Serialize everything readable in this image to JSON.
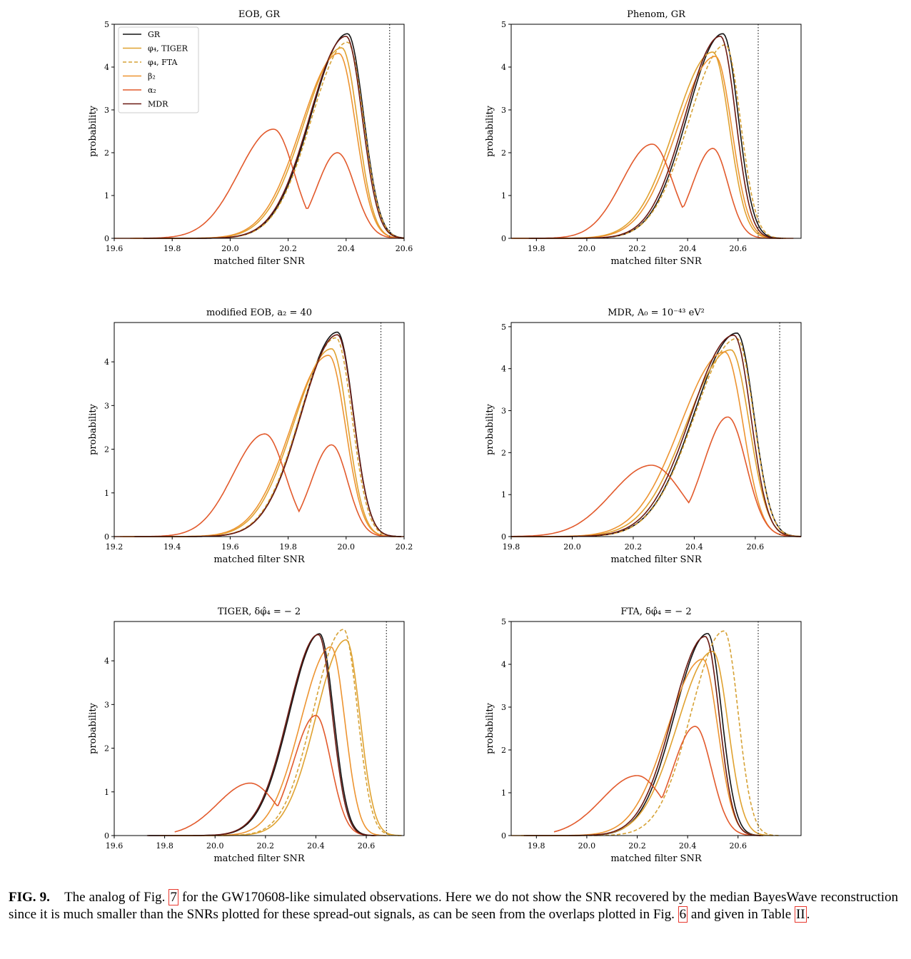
{
  "figure": {
    "caption_label": "FIG. 9.",
    "caption_parts": [
      "The analog of Fig. ",
      "7",
      " for the GW170608-like simulated observations. Here we do not show the SNR recovered by the median BayesWave reconstruction since it is much smaller than the SNRs plotted for these spread-out signals, as can be seen from the overlaps plotted in Fig. ",
      "6",
      " and given in Table ",
      "II",
      "."
    ]
  },
  "legend": [
    {
      "label": "GR",
      "color": "#141414",
      "dash": false
    },
    {
      "label": "φ₄, TIGER",
      "color": "#e0a230",
      "dash": false
    },
    {
      "label": "φ₄, FTA",
      "color": "#d6a236",
      "dash": true
    },
    {
      "label": "β₂",
      "color": "#ed9431",
      "dash": false
    },
    {
      "label": "α₂",
      "color": "#e25a2c",
      "dash": false
    },
    {
      "label": "MDR",
      "color": "#6b1a12",
      "dash": false
    }
  ],
  "chart_data": [
    {
      "type": "line",
      "title": "EOB, GR",
      "xlabel": "matched filter SNR",
      "ylabel": "probability",
      "xlim": [
        19.6,
        20.6
      ],
      "ylim": [
        0,
        5
      ],
      "xticks": [
        "19.6",
        "19.8",
        "20.0",
        "20.2",
        "20.4",
        "20.6"
      ],
      "yticks": [
        "0",
        "1",
        "2",
        "3",
        "4",
        "5"
      ],
      "vline": 20.55,
      "series": [
        {
          "name": "GR",
          "peak": 20.405,
          "height": 4.78,
          "sig_l": 0.125,
          "sig_r": 0.055
        },
        {
          "name": "φ₄, TIGER",
          "peak": 20.385,
          "height": 4.45,
          "sig_l": 0.13,
          "sig_r": 0.055
        },
        {
          "name": "φ₄, FTA",
          "peak": 20.405,
          "height": 4.58,
          "sig_l": 0.125,
          "sig_r": 0.055
        },
        {
          "name": "β₂",
          "peak": 20.375,
          "height": 4.32,
          "sig_l": 0.13,
          "sig_r": 0.058
        },
        {
          "name": "α₂",
          "peak": 20.15,
          "height": 2.55,
          "sig_l": 0.12,
          "sig_r": 0.07,
          "peak2": 20.37,
          "height2": 2.0,
          "sig2_l": 0.07,
          "sig2_r": 0.06
        },
        {
          "name": "MDR",
          "peak": 20.4,
          "height": 4.72,
          "sig_l": 0.125,
          "sig_r": 0.055
        }
      ]
    },
    {
      "type": "line",
      "title": "Phenom, GR",
      "xlabel": "matched filter SNR",
      "ylabel": "probability",
      "xlim": [
        19.7,
        20.85
      ],
      "ylim": [
        0,
        5
      ],
      "xticks": [
        "19.8",
        "20.0",
        "20.2",
        "20.4",
        "20.6"
      ],
      "yticks": [
        "0",
        "1",
        "2",
        "3",
        "4",
        "5"
      ],
      "vline": 20.68,
      "series": [
        {
          "name": "GR",
          "peak": 20.54,
          "height": 4.78,
          "sig_l": 0.14,
          "sig_r": 0.06
        },
        {
          "name": "φ₄, TIGER",
          "peak": 20.5,
          "height": 4.35,
          "sig_l": 0.15,
          "sig_r": 0.065
        },
        {
          "name": "φ₄, FTA",
          "peak": 20.55,
          "height": 4.52,
          "sig_l": 0.145,
          "sig_r": 0.06
        },
        {
          "name": "β₂",
          "peak": 20.51,
          "height": 4.25,
          "sig_l": 0.15,
          "sig_r": 0.065
        },
        {
          "name": "α₂",
          "peak": 20.26,
          "height": 2.2,
          "sig_l": 0.12,
          "sig_r": 0.08,
          "peak2": 20.5,
          "height2": 2.1,
          "sig2_l": 0.08,
          "sig2_r": 0.06
        },
        {
          "name": "MDR",
          "peak": 20.53,
          "height": 4.72,
          "sig_l": 0.14,
          "sig_r": 0.06
        }
      ]
    },
    {
      "type": "line",
      "title": "modified EOB, a₂ = 40",
      "xlabel": "matched filter SNR",
      "ylabel": "probability",
      "xlim": [
        19.2,
        20.2
      ],
      "ylim": [
        0,
        4.9
      ],
      "xticks": [
        "19.2",
        "19.4",
        "19.6",
        "19.8",
        "20.0",
        "20.2"
      ],
      "yticks": [
        "0",
        "1",
        "2",
        "3",
        "4"
      ],
      "vline": 20.12,
      "series": [
        {
          "name": "GR",
          "peak": 19.97,
          "height": 4.68,
          "sig_l": 0.125,
          "sig_r": 0.055
        },
        {
          "name": "φ₄, TIGER",
          "peak": 19.95,
          "height": 4.3,
          "sig_l": 0.13,
          "sig_r": 0.055
        },
        {
          "name": "φ₄, FTA",
          "peak": 19.965,
          "height": 4.55,
          "sig_l": 0.125,
          "sig_r": 0.055
        },
        {
          "name": "β₂",
          "peak": 19.94,
          "height": 4.15,
          "sig_l": 0.13,
          "sig_r": 0.058
        },
        {
          "name": "α₂",
          "peak": 19.72,
          "height": 2.35,
          "sig_l": 0.11,
          "sig_r": 0.07,
          "peak2": 19.95,
          "height2": 2.1,
          "sig2_l": 0.07,
          "sig2_r": 0.055
        },
        {
          "name": "MDR",
          "peak": 19.97,
          "height": 4.62,
          "sig_l": 0.125,
          "sig_r": 0.055
        }
      ]
    },
    {
      "type": "line",
      "title": "MDR, A₀ = 10⁻⁴³ eV²",
      "xlabel": "matched filter SNR",
      "ylabel": "probability",
      "xlim": [
        19.8,
        20.75
      ],
      "ylim": [
        0,
        5.1
      ],
      "xticks": [
        "19.8",
        "20.0",
        "20.2",
        "20.4",
        "20.6"
      ],
      "yticks": [
        "0",
        "1",
        "2",
        "3",
        "4",
        "5"
      ],
      "vline": 20.68,
      "series": [
        {
          "name": "GR",
          "peak": 20.54,
          "height": 4.85,
          "sig_l": 0.14,
          "sig_r": 0.055
        },
        {
          "name": "φ₄, TIGER",
          "peak": 20.52,
          "height": 4.45,
          "sig_l": 0.145,
          "sig_r": 0.06
        },
        {
          "name": "φ₄, FTA",
          "peak": 20.54,
          "height": 4.72,
          "sig_l": 0.14,
          "sig_r": 0.055
        },
        {
          "name": "β₂",
          "peak": 20.5,
          "height": 4.4,
          "sig_l": 0.145,
          "sig_r": 0.06
        },
        {
          "name": "α₂",
          "peak": 20.26,
          "height": 1.7,
          "sig_l": 0.13,
          "sig_r": 0.1,
          "peak2": 20.51,
          "height2": 2.85,
          "sig2_l": 0.08,
          "sig2_r": 0.06
        },
        {
          "name": "MDR",
          "peak": 20.53,
          "height": 4.8,
          "sig_l": 0.14,
          "sig_r": 0.055
        }
      ]
    },
    {
      "type": "line",
      "title": "TIGER, δφ̂₄ = − 2",
      "xlabel": "matched filter SNR",
      "ylabel": "probability",
      "xlim": [
        19.6,
        20.75
      ],
      "ylim": [
        0,
        4.9
      ],
      "xticks": [
        "19.6",
        "19.8",
        "20.0",
        "20.2",
        "20.4",
        "20.6"
      ],
      "yticks": [
        "0",
        "1",
        "2",
        "3",
        "4"
      ],
      "vline": 20.68,
      "series": [
        {
          "name": "GR",
          "peak": 20.415,
          "height": 4.62,
          "sig_l": 0.12,
          "sig_r": 0.055
        },
        {
          "name": "φ₄, TIGER",
          "peak": 20.52,
          "height": 4.48,
          "sig_l": 0.12,
          "sig_r": 0.055
        },
        {
          "name": "φ₄, FTA",
          "peak": 20.51,
          "height": 4.72,
          "sig_l": 0.12,
          "sig_r": 0.055
        },
        {
          "name": "β₂",
          "peak": 20.46,
          "height": 4.32,
          "sig_l": 0.12,
          "sig_r": 0.055
        },
        {
          "name": "α₂",
          "peak": 20.4,
          "height": 2.75,
          "sig_l": 0.09,
          "sig_r": 0.06,
          "peak2": 20.14,
          "height2": 1.2,
          "sig2_l": 0.13,
          "sig2_r": 0.1
        },
        {
          "name": "MDR",
          "peak": 20.41,
          "height": 4.6,
          "sig_l": 0.12,
          "sig_r": 0.055
        }
      ]
    },
    {
      "type": "line",
      "title": "FTA, δφ̂₄ = − 2",
      "xlabel": "matched filter SNR",
      "ylabel": "probability",
      "xlim": [
        19.7,
        20.85
      ],
      "ylim": [
        0,
        5
      ],
      "xticks": [
        "19.8",
        "20.0",
        "20.2",
        "20.4",
        "20.6"
      ],
      "yticks": [
        "0",
        "1",
        "2",
        "3",
        "4",
        "5"
      ],
      "vline": 20.68,
      "series": [
        {
          "name": "GR",
          "peak": 20.48,
          "height": 4.72,
          "sig_l": 0.13,
          "sig_r": 0.055
        },
        {
          "name": "φ₄, TIGER",
          "peak": 20.5,
          "height": 4.3,
          "sig_l": 0.14,
          "sig_r": 0.06
        },
        {
          "name": "φ₄, FTA",
          "peak": 20.545,
          "height": 4.78,
          "sig_l": 0.13,
          "sig_r": 0.055
        },
        {
          "name": "β₂",
          "peak": 20.46,
          "height": 4.12,
          "sig_l": 0.14,
          "sig_r": 0.06
        },
        {
          "name": "α₂",
          "peak": 20.43,
          "height": 2.55,
          "sig_l": 0.09,
          "sig_r": 0.065,
          "peak2": 20.2,
          "height2": 1.4,
          "sig2_l": 0.14,
          "sig2_r": 0.1
        },
        {
          "name": "MDR",
          "peak": 20.47,
          "height": 4.65,
          "sig_l": 0.13,
          "sig_r": 0.055
        }
      ]
    }
  ]
}
